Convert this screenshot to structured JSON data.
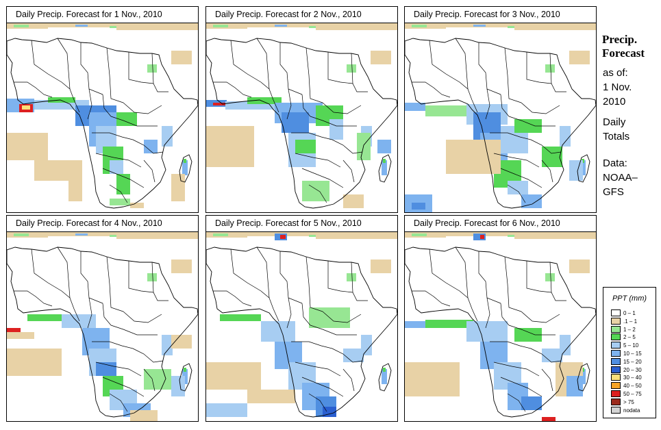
{
  "panels": [
    {
      "title": "Daily Precip. Forecast for  1 Nov., 2010",
      "day": 1
    },
    {
      "title": "Daily Precip. Forecast for  2 Nov., 2010",
      "day": 2
    },
    {
      "title": "Daily Precip. Forecast for  3 Nov., 2010",
      "day": 3
    },
    {
      "title": "Daily Precip. Forecast for  4 Nov., 2010",
      "day": 4
    },
    {
      "title": "Daily Precip. Forecast for  5 Nov., 2010",
      "day": 5
    },
    {
      "title": "Daily Precip. Forecast for  6 Nov., 2010",
      "day": 6
    }
  ],
  "sidebar": {
    "title_line1": "Precip.",
    "title_line2": "Forecast",
    "asof_line1": "as of:",
    "asof_line2": "1 Nov.",
    "asof_line3": "2010",
    "totals_line1": "Daily",
    "totals_line2": "Totals",
    "data_line1": "Data:",
    "data_line2": "NOAA–",
    "data_line3": "GFS"
  },
  "legend": {
    "title": "PPT (mm)",
    "items": [
      {
        "label": "0 – 1",
        "color": "#ffffff"
      },
      {
        "label": ".1 – 1",
        "color": "#e8d2a6"
      },
      {
        "label": "1 – 2",
        "color": "#97e693"
      },
      {
        "label": "2 – 5",
        "color": "#55d655"
      },
      {
        "label": "5 – 10",
        "color": "#a7cdf2"
      },
      {
        "label": "10 – 15",
        "color": "#7eb3ef"
      },
      {
        "label": "15 – 20",
        "color": "#4f8ee0"
      },
      {
        "label": "20 – 30",
        "color": "#2a5fd0"
      },
      {
        "label": "30 – 40",
        "color": "#fbe07a"
      },
      {
        "label": "40 – 50",
        "color": "#f7a424"
      },
      {
        "label": "50 – 75",
        "color": "#dd2020"
      },
      {
        "label": "> 75",
        "color": "#9b2a1c"
      },
      {
        "label": "nodata",
        "color": "#d3d3d3"
      }
    ]
  }
}
